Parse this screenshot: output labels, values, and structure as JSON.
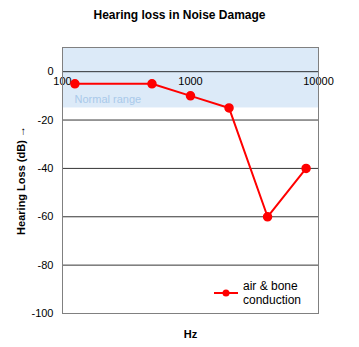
{
  "chart_data": {
    "type": "line",
    "title": "Hearing loss in Noise Damage",
    "x_label": "Hz",
    "y_label": "Hearing Loss (dB)",
    "x": [
      125,
      500,
      1000,
      2000,
      4000,
      8000
    ],
    "series": [
      {
        "name": "air & bone conduction",
        "color": "#ff0000",
        "marker": "circle",
        "values": [
          -5,
          -5,
          -10,
          -15,
          -60,
          -40
        ]
      }
    ],
    "xlim": [
      100,
      10000
    ],
    "xticks": [
      100,
      1000,
      10000
    ],
    "log": "x",
    "ylim": [
      -100,
      10
    ],
    "yticks": [
      -100,
      -80,
      -60,
      -40,
      -20,
      0
    ],
    "grid": true,
    "legend": "bottom-right",
    "annotations": [
      {
        "text": "Normal range",
        "y_range": [
          -15,
          10
        ]
      }
    ]
  }
}
